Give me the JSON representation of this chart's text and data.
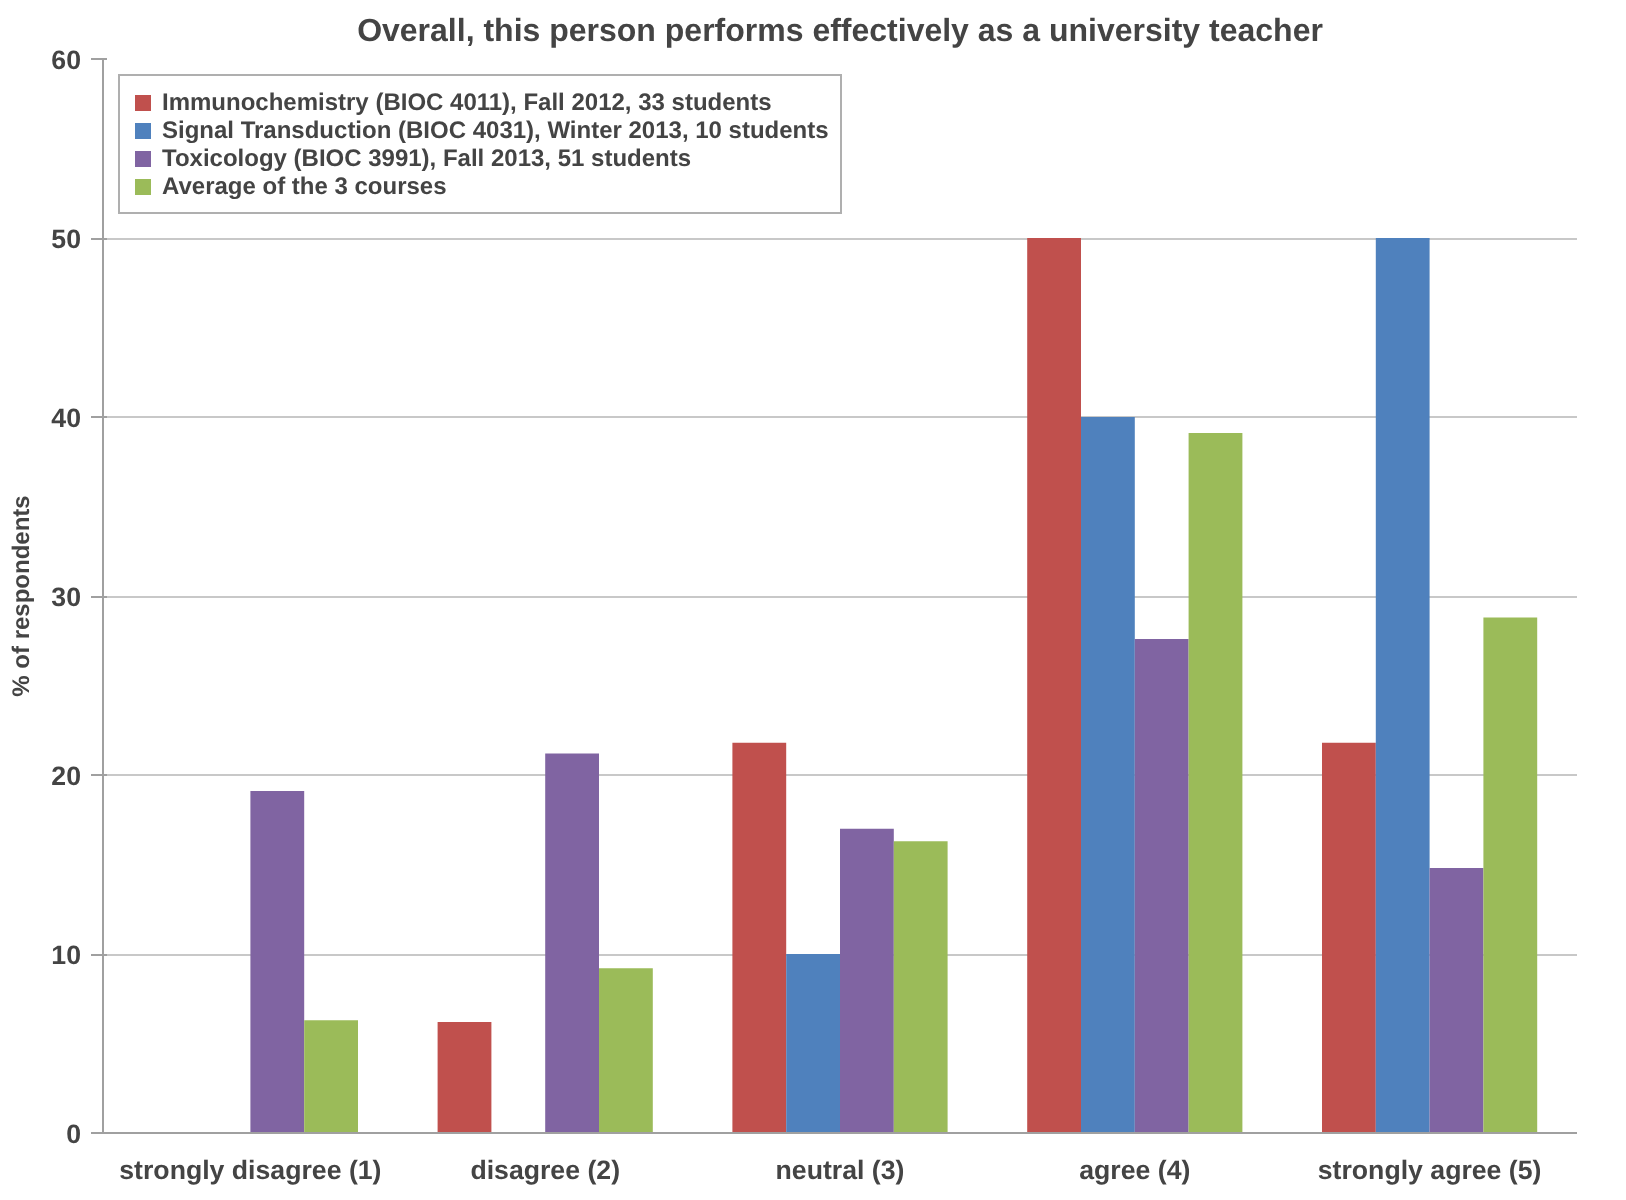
{
  "chart_data": {
    "type": "bar",
    "title": "Overall, this person performs effectively as a university teacher",
    "ylabel": "% of respondents",
    "categories": [
      "strongly disagree (1)",
      "disagree (2)",
      "neutral (3)",
      "agree (4)",
      "strongly agree (5)"
    ],
    "series": [
      {
        "name": "Immunochemistry (BIOC 4011), Fall 2012, 33 students",
        "color": "#c0504d",
        "values": [
          0,
          6.2,
          21.8,
          50,
          21.8
        ]
      },
      {
        "name": "Signal Transduction (BIOC 4031), Winter 2013, 10 students",
        "color": "#4f81bd",
        "values": [
          0,
          0,
          10,
          40,
          50
        ]
      },
      {
        "name": "Toxicology (BIOC 3991), Fall 2013, 51 students",
        "color": "#8064a2",
        "values": [
          19.1,
          21.2,
          17.0,
          27.6,
          14.8
        ]
      },
      {
        "name": "Average of the 3 courses",
        "color": "#9bbb59",
        "values": [
          6.3,
          9.2,
          16.3,
          39.1,
          28.8
        ]
      }
    ],
    "ylim": [
      0,
      60
    ],
    "yticks": [
      0,
      10,
      20,
      30,
      40,
      50,
      60
    ],
    "grid": "y",
    "legend": "top left"
  }
}
